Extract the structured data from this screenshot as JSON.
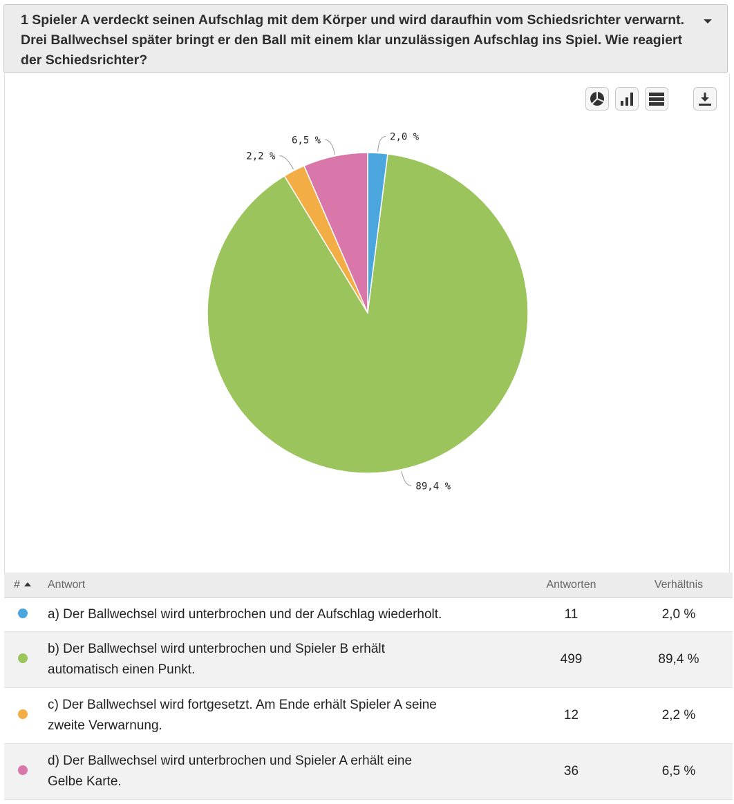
{
  "question": {
    "text": "1 Spieler A verdeckt seinen Aufschlag mit dem Körper und wird daraufhin vom Schiedsrichter verwarnt. Drei Ballwechsel später bringt er den Ball mit einem klar unzulässigen Aufschlag ins Spiel. Wie reagiert der Schiedsrichter?"
  },
  "toolbar": {
    "pie_icon": "pie-chart-icon",
    "bar_icon": "bar-chart-icon",
    "table_icon": "table-view-icon",
    "download_icon": "download-icon"
  },
  "chart_data": {
    "type": "pie",
    "categories": [
      "a) Der Ballwechsel wird unterbrochen und der Aufschlag wiederholt.",
      "b) Der Ballwechsel wird unterbrochen und Spieler B erhält automatisch einen Punkt.",
      "c) Der Ballwechsel wird fortgesetzt. Am Ende erhält Spieler A seine zweite Verwarnung.",
      "d) Der Ballwechsel wird unterbrochen und Spieler A erhält eine Gelbe Karte."
    ],
    "values": [
      2.0,
      89.4,
      2.2,
      6.5
    ],
    "labels": [
      "2,0 %",
      "89,4 %",
      "2,2 %",
      "6,5 %"
    ],
    "colors": [
      "#4aa6dd",
      "#9bc45c",
      "#f2ad44",
      "#d977ab"
    ]
  },
  "table": {
    "headers": {
      "number": "#",
      "answer": "Antwort",
      "responses": "Antworten",
      "ratio": "Verhältnis"
    },
    "rows": [
      {
        "line1": "a) Der Ballwechsel wird unterbrochen und der Aufschlag wiederholt.",
        "line2": "",
        "responses": "11",
        "ratio": "2,0 %",
        "color": "#4aa6dd"
      },
      {
        "line1": "b) Der Ballwechsel wird unterbrochen und Spieler B erhält",
        "line2": "automatisch einen Punkt.",
        "responses": "499",
        "ratio": "89,4 %",
        "color": "#9bc45c"
      },
      {
        "line1": "c) Der Ballwechsel wird fortgesetzt. Am Ende erhält Spieler A seine",
        "line2": "zweite Verwarnung.",
        "responses": "12",
        "ratio": "2,2 %",
        "color": "#f2ad44"
      },
      {
        "line1": "d) Der Ballwechsel wird unterbrochen und Spieler A erhält eine",
        "line2": "Gelbe Karte.",
        "responses": "36",
        "ratio": "6,5 %",
        "color": "#d977ab"
      }
    ]
  }
}
